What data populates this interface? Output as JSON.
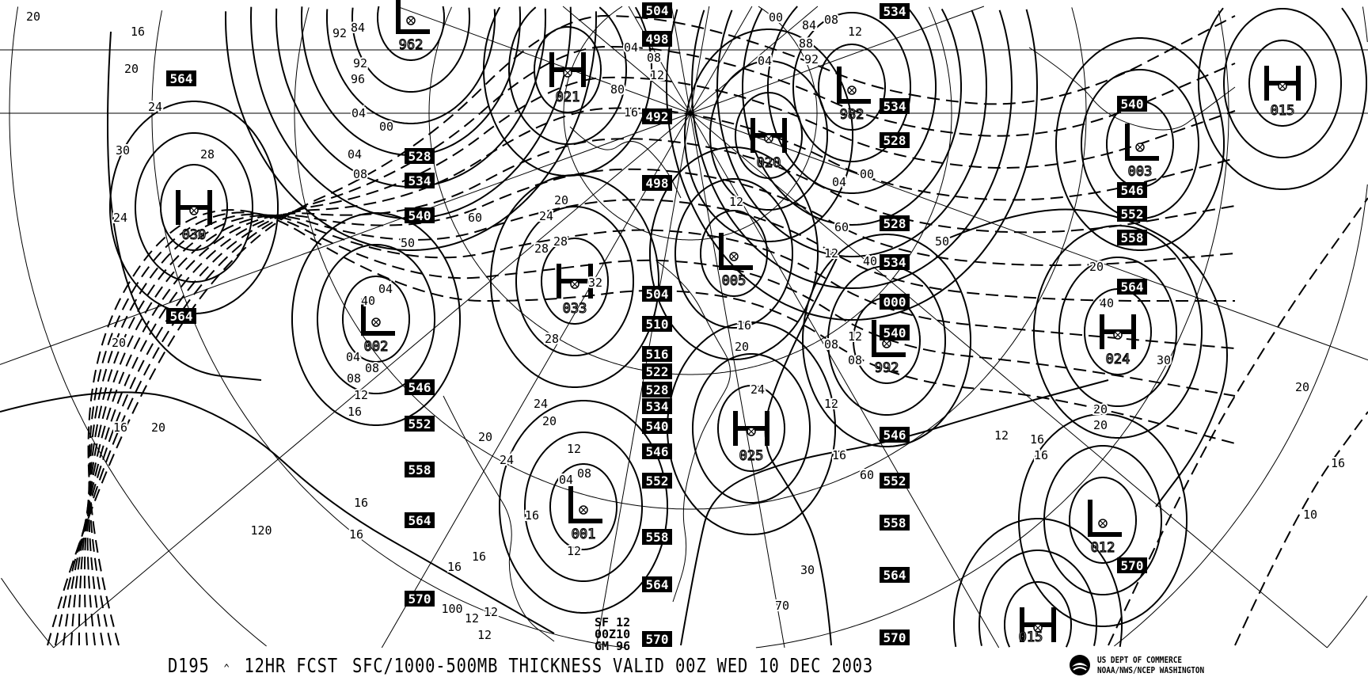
{
  "chart_info": {
    "product_id": "D195",
    "marker": "^",
    "forecast": "12HR FCST",
    "title": "SFC/1000-500MB THICKNESS VALID 00Z WED 10 DEC 2003"
  },
  "stamp": {
    "line1": "SF 12",
    "line2": "00Z10",
    "line3": "GM 96"
  },
  "agency": {
    "line1": "US DEPT OF COMMERCE",
    "line2": "NOAA/NWS/NCEP WASHINGTON",
    "logo_icon": "noaa-logo-icon"
  },
  "pressure_centers": [
    {
      "type": "H",
      "value": "030"
    },
    {
      "type": "L",
      "value": "002"
    },
    {
      "type": "L",
      "value": "962"
    },
    {
      "type": "H",
      "value": "021"
    },
    {
      "type": "H",
      "value": "033"
    },
    {
      "type": "H",
      "value": "020"
    },
    {
      "type": "L",
      "value": "982"
    },
    {
      "type": "L",
      "value": "005"
    },
    {
      "type": "L",
      "value": "992"
    },
    {
      "type": "H",
      "value": "025"
    },
    {
      "type": "L",
      "value": "001"
    },
    {
      "type": "H",
      "value": "015"
    },
    {
      "type": "L",
      "value": "003"
    },
    {
      "type": "H",
      "value": "024"
    },
    {
      "type": "L",
      "value": "012"
    },
    {
      "type": "H",
      "value": "015"
    }
  ],
  "thickness_labels": [
    "504",
    "498",
    "492",
    "498",
    "504",
    "510",
    "516",
    "522",
    "528",
    "534",
    "540",
    "546",
    "552",
    "558",
    "564",
    "570",
    "564",
    "564",
    "528",
    "534",
    "540",
    "546",
    "552",
    "558",
    "564",
    "570",
    "534",
    "534",
    "528",
    "528",
    "534",
    "000",
    "540",
    "546",
    "552",
    "558",
    "564",
    "570",
    "540",
    "546",
    "552",
    "558",
    "564",
    "570"
  ],
  "isobar_labels": [
    "20",
    "16",
    "20",
    "24",
    "28",
    "24",
    "30",
    "20",
    "16",
    "20",
    "16",
    "120",
    "16",
    "40",
    "50",
    "04",
    "08",
    "04",
    "08",
    "12",
    "16",
    "92",
    "96",
    "04",
    "00",
    "08",
    "04",
    "84",
    "92",
    "60",
    "20",
    "24",
    "28",
    "28",
    "32",
    "28",
    "24",
    "20",
    "12",
    "16",
    "16",
    "12",
    "08",
    "04",
    "24",
    "20",
    "16",
    "12",
    "80",
    "16",
    "12",
    "08",
    "04",
    "12",
    "16",
    "20",
    "24",
    "04",
    "00",
    "88",
    "92",
    "84",
    "08",
    "04",
    "00",
    "12",
    "12",
    "08",
    "40",
    "50",
    "60",
    "20",
    "12",
    "08",
    "12",
    "16",
    "30",
    "70",
    "60",
    "16",
    "20",
    "30",
    "40",
    "20",
    "16",
    "10",
    "20",
    "16",
    "12",
    "12",
    "100",
    "12"
  ]
}
